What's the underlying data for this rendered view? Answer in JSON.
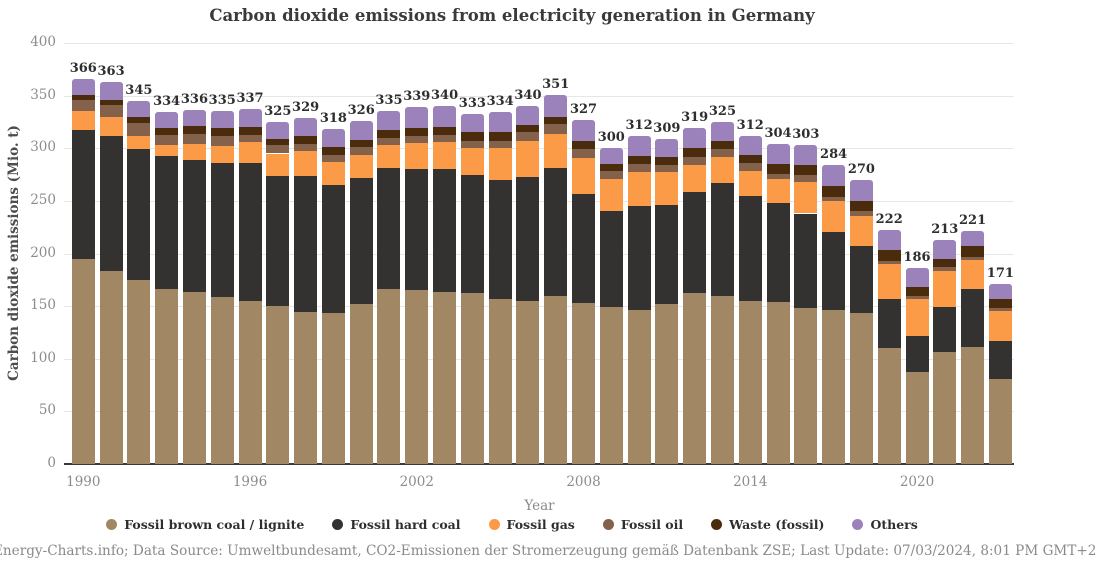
{
  "title": "Carbon dioxide emissions from electricity generation in Germany",
  "footer": "Energy-Charts.info; Data Source: Umweltbundesamt, CO2-Emissionen der Stromerzeugung gemäß Datenbank ZSE; Last Update: 07/03/2024, 8:01 PM GMT+2",
  "chart_data": {
    "type": "bar",
    "stacked": true,
    "title": "Carbon dioxide emissions from electricity generation in Germany",
    "xlabel": "Year",
    "ylabel": "Carbon dioxide emissions (Mio. t)",
    "ylim": [
      0,
      400
    ],
    "ytick_step": 50,
    "grid": true,
    "legend_position": "bottom",
    "categories": [
      1990,
      1991,
      1992,
      1993,
      1994,
      1995,
      1996,
      1997,
      1998,
      1999,
      2000,
      2001,
      2002,
      2003,
      2004,
      2005,
      2006,
      2007,
      2008,
      2009,
      2010,
      2011,
      2012,
      2013,
      2014,
      2015,
      2016,
      2017,
      2018,
      2019,
      2020,
      2021,
      2022,
      2023
    ],
    "x_tick_years": [
      1990,
      1996,
      2002,
      2008,
      2014,
      2020
    ],
    "totals": [
      366,
      363,
      345,
      334,
      336,
      335,
      337,
      325,
      329,
      318,
      326,
      335,
      339,
      340,
      333,
      334,
      340,
      351,
      327,
      300,
      312,
      309,
      319,
      325,
      312,
      304,
      303,
      284,
      270,
      222,
      186,
      213,
      221,
      171
    ],
    "series": [
      {
        "name": "Fossil brown coal / lignite",
        "color": "#a28764",
        "values": [
          195,
          183,
          175,
          166,
          163,
          159,
          155,
          150,
          144,
          143,
          152,
          166,
          165,
          163,
          162,
          157,
          155,
          160,
          153,
          149,
          146,
          152,
          162,
          160,
          155,
          154,
          148,
          146,
          143,
          110,
          87,
          106,
          111,
          81
        ]
      },
      {
        "name": "Fossil hard coal",
        "color": "#333230",
        "values": [
          122,
          129,
          124,
          127,
          126,
          127,
          131,
          124,
          130,
          122,
          120,
          115,
          115,
          117,
          113,
          113,
          118,
          121,
          104,
          91,
          99,
          94,
          96,
          107,
          100,
          94,
          90,
          74,
          64,
          47,
          35,
          43,
          55,
          36
        ]
      },
      {
        "name": "Fossil gas",
        "color": "#fb9a47",
        "values": [
          18,
          18,
          13,
          10,
          15,
          16,
          20,
          21,
          23,
          22,
          22,
          22,
          25,
          26,
          25,
          30,
          34,
          33,
          34,
          31,
          32,
          31,
          26,
          25,
          23,
          23,
          30,
          30,
          29,
          33,
          35,
          34,
          28,
          28
        ]
      },
      {
        "name": "Fossil oil",
        "color": "#84614a",
        "values": [
          11,
          11,
          12,
          10,
          10,
          10,
          7,
          8,
          7,
          7,
          7,
          7,
          7,
          7,
          7,
          7,
          8,
          9,
          8,
          7,
          8,
          7,
          8,
          7,
          8,
          5,
          7,
          4,
          4,
          3,
          3,
          4,
          3,
          3
        ]
      },
      {
        "name": "Waste (fossil)",
        "color": "#4a2b0c",
        "values": [
          5,
          5,
          6,
          6,
          7,
          7,
          7,
          6,
          8,
          7,
          7,
          7,
          7,
          7,
          8,
          8,
          7,
          7,
          8,
          7,
          8,
          8,
          8,
          8,
          8,
          9,
          9,
          10,
          10,
          10,
          8,
          8,
          10,
          9
        ]
      },
      {
        "name": "Others",
        "color": "#9c82ba",
        "values": [
          15,
          17,
          15,
          15,
          15,
          16,
          17,
          16,
          17,
          17,
          18,
          18,
          20,
          20,
          18,
          19,
          18,
          21,
          20,
          15,
          19,
          17,
          19,
          18,
          18,
          19,
          19,
          20,
          20,
          19,
          18,
          18,
          14,
          14
        ]
      }
    ]
  }
}
